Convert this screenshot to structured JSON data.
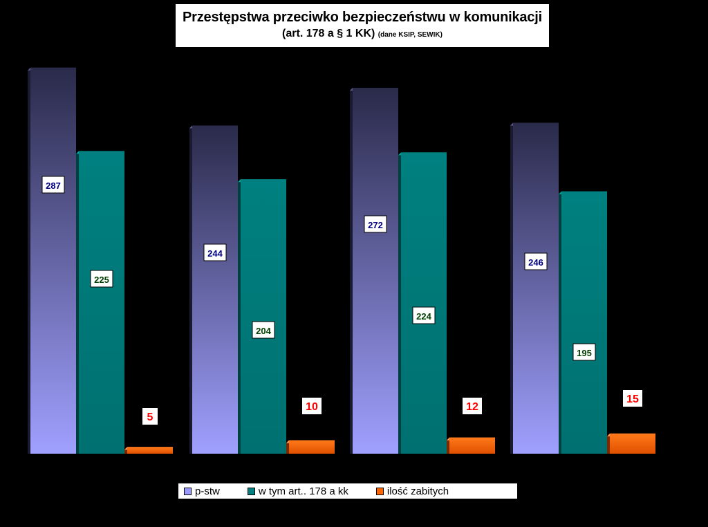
{
  "title": {
    "main": "Przestępstwa przeciwko bezpieczeństwu w komunikacji",
    "sub_big": "(art.  178 a  § 1  KK)",
    "sub_small": "(dane KSIP, SEWIK)"
  },
  "legend": [
    {
      "label": "p-stw",
      "color": "#9999ff"
    },
    {
      "label": "w tym art.. 178 a kk",
      "color": "#008080"
    },
    {
      "label": "ilość zabitych",
      "color": "#ff6600"
    }
  ],
  "chart_data": {
    "type": "bar",
    "categories": [
      "",
      "",
      "",
      ""
    ],
    "series": [
      {
        "name": "p-stw",
        "values": [
          287,
          244,
          272,
          246
        ],
        "color": "#9999ff",
        "label_color": "#000080"
      },
      {
        "name": "w tym art.. 178 a kk",
        "values": [
          225,
          204,
          224,
          195
        ],
        "color": "#008080",
        "label_color": "#004000"
      },
      {
        "name": "ilość zabitych",
        "values": [
          5,
          10,
          12,
          15
        ],
        "color": "#ff6600",
        "label_color": "#ff0000"
      }
    ],
    "ylim": [
      0,
      300
    ],
    "grid": false,
    "legend_position": "bottom"
  }
}
